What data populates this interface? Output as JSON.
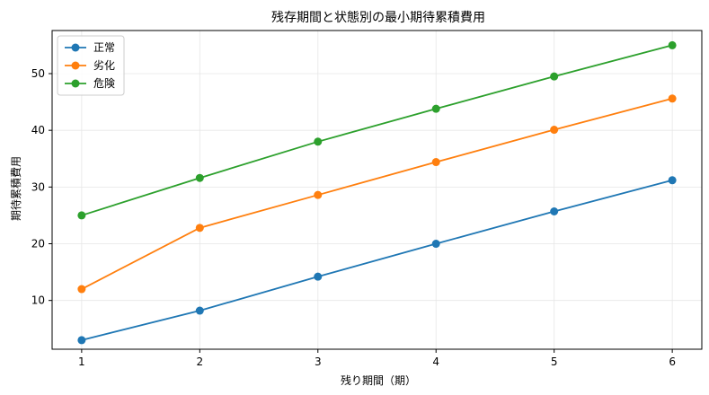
{
  "chart_data": {
    "type": "line",
    "title": "残存期間と状態別の最小期待累積費用",
    "xlabel": "残り期間（期）",
    "ylabel": "期待累積費用",
    "x": [
      1,
      2,
      3,
      4,
      5,
      6
    ],
    "xlim": [
      0.75,
      6.25
    ],
    "ylim": [
      1.4,
      57.6
    ],
    "xticks": [
      1,
      2,
      3,
      4,
      5,
      6
    ],
    "yticks": [
      10,
      20,
      30,
      40,
      50
    ],
    "grid": true,
    "legend_position": "top-left",
    "series": [
      {
        "name": "正常",
        "color": "#1f77b4",
        "values": [
          3.0,
          8.2,
          14.2,
          20.0,
          25.7,
          31.2
        ]
      },
      {
        "name": "劣化",
        "color": "#ff7f0e",
        "values": [
          12.0,
          22.8,
          28.6,
          34.4,
          40.1,
          45.6
        ]
      },
      {
        "name": "危険",
        "color": "#2ca02c",
        "values": [
          25.0,
          31.6,
          38.0,
          43.8,
          49.5,
          55.0
        ]
      }
    ]
  }
}
